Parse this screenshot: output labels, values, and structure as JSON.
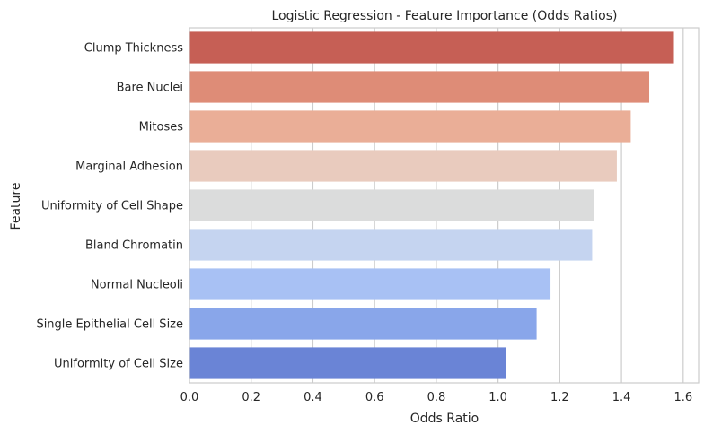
{
  "chart_data": {
    "type": "bar",
    "orientation": "horizontal",
    "title": "Logistic Regression - Feature Importance (Odds Ratios)",
    "xlabel": "Odds Ratio",
    "ylabel": "Feature",
    "xlim": [
      0,
      1.65
    ],
    "xticks": [
      "0.0",
      "0.2",
      "0.4",
      "0.6",
      "0.8",
      "1.0",
      "1.2",
      "1.4",
      "1.6"
    ],
    "xtick_values": [
      0,
      0.2,
      0.4,
      0.6,
      0.8,
      1.0,
      1.2,
      1.4,
      1.6
    ],
    "grid": true,
    "categories": [
      "Clump Thickness",
      "Bare Nuclei",
      "Mitoses",
      "Marginal Adhesion",
      "Uniformity of Cell Shape",
      "Bland Chromatin",
      "Normal Nucleoli",
      "Single Epithelial Cell Size",
      "Uniformity of Cell Size"
    ],
    "values": [
      1.57,
      1.49,
      1.43,
      1.385,
      1.31,
      1.305,
      1.17,
      1.125,
      1.025
    ],
    "colors": [
      "#c65f55",
      "#de8c77",
      "#eaae97",
      "#e9cbbe",
      "#dbdcdc",
      "#c5d4f0",
      "#a8c1f4",
      "#89a6ea",
      "#6a84d6"
    ]
  }
}
